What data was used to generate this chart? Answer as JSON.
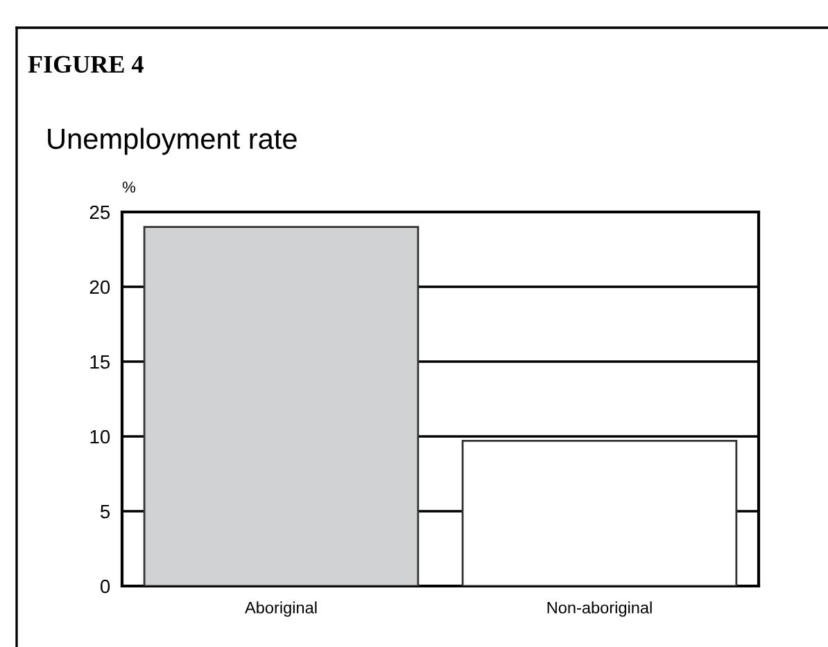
{
  "chart_data": {
    "type": "bar",
    "title": "FIGURE 4",
    "subtitle": "Unemployment rate",
    "ylabel": "%",
    "categories": [
      "Aboriginal",
      "Non-aboriginal"
    ],
    "values": [
      24.0,
      9.7
    ],
    "colors": [
      "#d1d2d4",
      "#ffffff"
    ],
    "ylim": [
      0,
      25
    ],
    "yticks": [
      0,
      5,
      10,
      15,
      20,
      25
    ],
    "grid": "y"
  }
}
